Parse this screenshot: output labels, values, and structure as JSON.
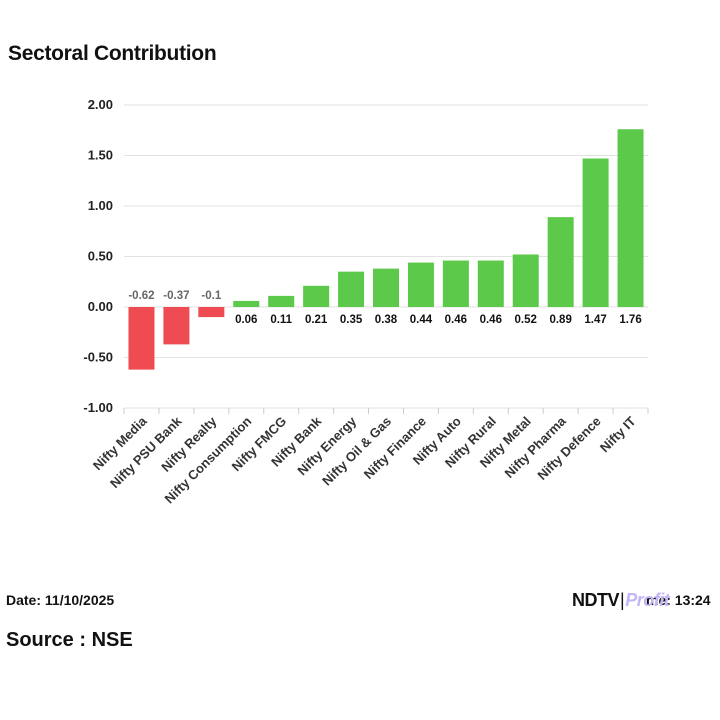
{
  "title": "Sectoral Contribution",
  "footer": {
    "date": "Date: 11/10/2025",
    "source": "Source : NSE",
    "time_fragment": "me: 13:24",
    "logo_ndtv": "NDTV",
    "logo_sep": "|",
    "logo_profit": "Profit"
  },
  "colors": {
    "positive": "#5cc94a",
    "negative": "#ef4b52",
    "grid": "#e2e2e2",
    "axis": "#cccccc"
  },
  "chart_data": {
    "type": "bar",
    "title": "Sectoral Contribution",
    "xlabel": "",
    "ylabel": "",
    "ylim": [
      -1.0,
      2.0
    ],
    "yticks": [
      2.0,
      1.5,
      1.0,
      0.5,
      0.0,
      -0.5,
      -1.0
    ],
    "ytick_labels": [
      "2.00",
      "1.50",
      "1.00",
      "0.50",
      "0.00",
      "-0.50",
      "-1.00"
    ],
    "grid": true,
    "categories": [
      "Nifty Media",
      "Nifty PSU Bank",
      "Nifty Realty",
      "Nifty Consumption",
      "Nifty FMCG",
      "Nifty Bank",
      "Nifty Energy",
      "Nifty Oil & Gas",
      "Nifty Finance",
      "Nifty Auto",
      "Nifty Rural",
      "Nifty Metal",
      "Nifty Pharma",
      "Nifty Defence",
      "Nifty IT"
    ],
    "values": [
      -0.62,
      -0.37,
      -0.1,
      0.06,
      0.11,
      0.21,
      0.35,
      0.38,
      0.44,
      0.46,
      0.46,
      0.52,
      0.89,
      1.47,
      1.76
    ],
    "data_labels": [
      "-0.62",
      "-0.37",
      "-0.1",
      "0.06",
      "0.11",
      "0.21",
      "0.35",
      "0.38",
      "0.44",
      "0.46",
      "0.46",
      "0.52",
      "0.89",
      "1.47",
      "1.76"
    ]
  }
}
